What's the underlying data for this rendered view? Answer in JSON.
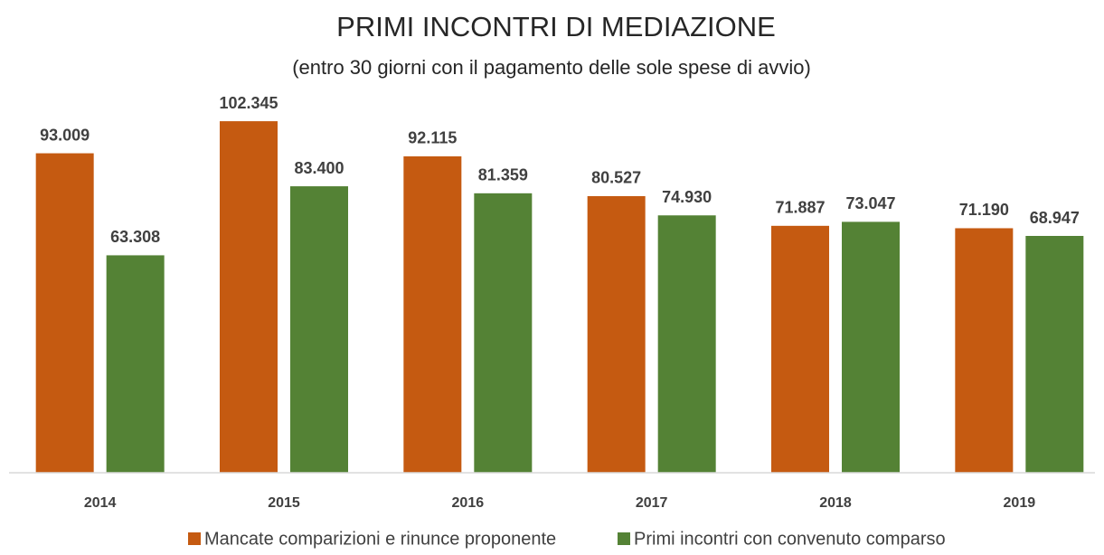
{
  "chart_data": {
    "type": "bar",
    "title": "PRIMI INCONTRI DI MEDIAZIONE",
    "subtitle": "(entro 30 giorni con il pagamento delle sole spese di avvio)",
    "categories": [
      "2014",
      "2015",
      "2016",
      "2017",
      "2018",
      "2019"
    ],
    "series": [
      {
        "name": "Mancate comparizioni e rinunce proponente",
        "color": "#c55a11",
        "values": [
          93009,
          102345,
          92115,
          80527,
          71887,
          71190
        ],
        "value_labels": [
          "93.009",
          "102.345",
          "92.115",
          "80.527",
          "71.887",
          "71.190"
        ]
      },
      {
        "name": "Primi incontri con convenuto comparso",
        "color": "#548235",
        "values": [
          63308,
          83400,
          81359,
          74930,
          73047,
          68947
        ],
        "value_labels": [
          "63.308",
          "83.400",
          "81.359",
          "74.930",
          "73.047",
          "68.947"
        ]
      }
    ],
    "ylim": [
      0,
      110000
    ],
    "legend": "bottom"
  }
}
